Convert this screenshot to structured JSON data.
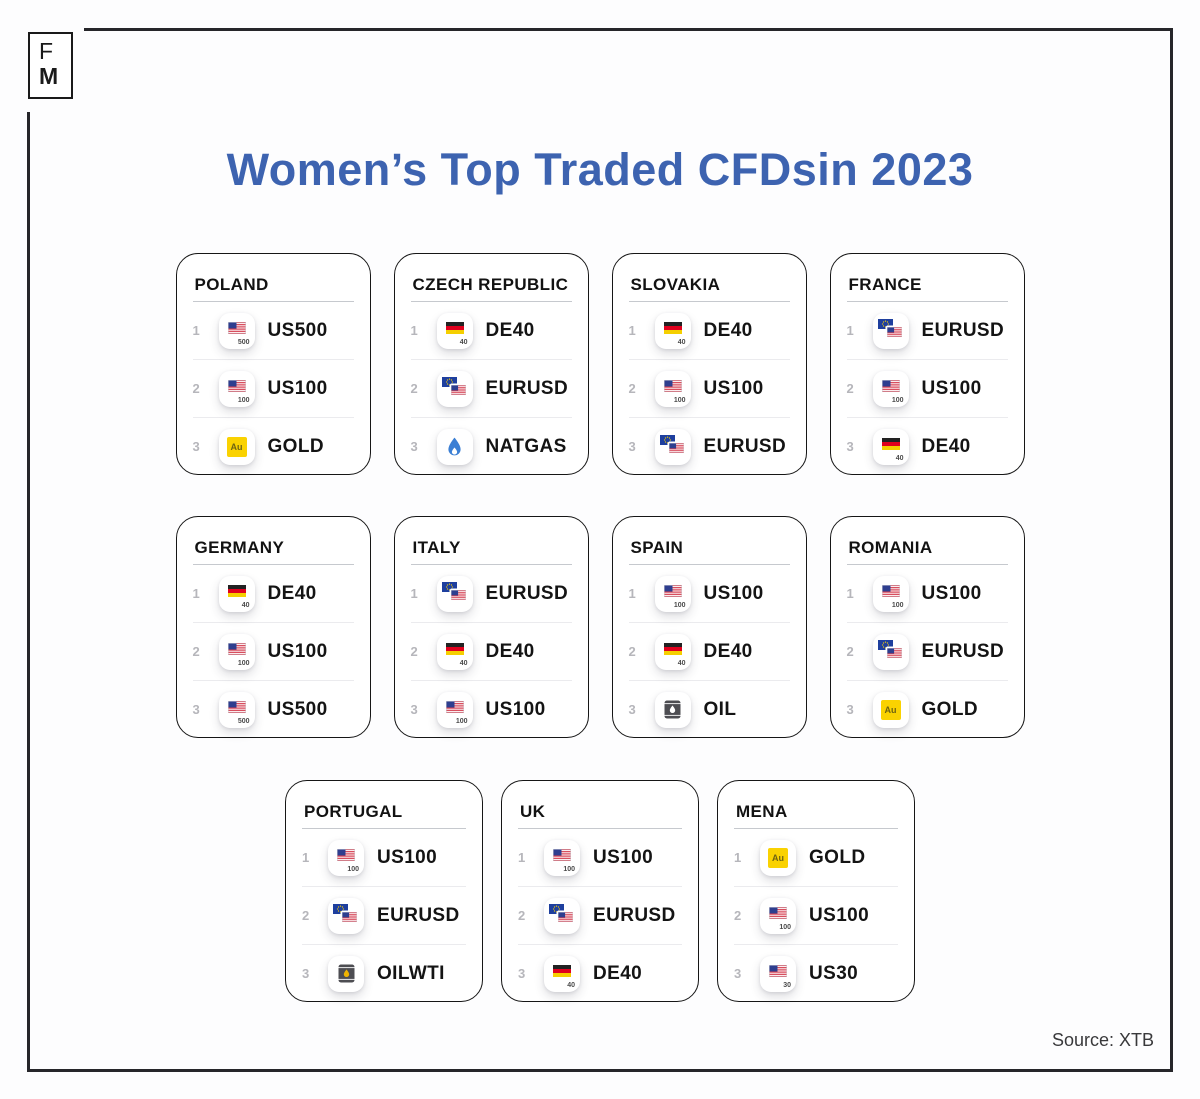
{
  "logo": {
    "top": "F",
    "bottom": "M"
  },
  "title": "Women’s Top Traded CFDsin 2023",
  "source": "Source: XTB",
  "colors": {
    "title_blue": "#3d63b0",
    "card_border": "#161616",
    "rank_gray": "#b6b6bb",
    "gold": "#fad201",
    "flame_blue": "#3b7fd4",
    "us_red": "#d0283c",
    "us_canton": "#2e3e8f",
    "de_black": "#222222",
    "de_red": "#e0001d",
    "de_gold": "#f5cf00",
    "eu_blue": "#1e3f9e",
    "eu_star": "#ffd500",
    "barrel_gray": "#4d4d52",
    "wti_drop": "#f0b400"
  },
  "icon_defs": {
    "us500": {
      "kind": "flag",
      "flag": "us",
      "badge": "500"
    },
    "us100": {
      "kind": "flag",
      "flag": "us",
      "badge": "100"
    },
    "us30": {
      "kind": "flag",
      "flag": "us",
      "badge": "30"
    },
    "de40": {
      "kind": "flag",
      "flag": "de",
      "badge": "40"
    },
    "eurusd": {
      "kind": "pair"
    },
    "gold": {
      "kind": "gold",
      "text": "Au"
    },
    "natgas": {
      "kind": "flame"
    },
    "oil": {
      "kind": "barrel",
      "drop": "#ffffff"
    },
    "oilwti": {
      "kind": "barrel",
      "drop": "#f0b400"
    }
  },
  "cards": [
    {
      "country": "POLAND",
      "row": 0,
      "items": [
        {
          "rank": "1",
          "label": "US500",
          "icon": "us500"
        },
        {
          "rank": "2",
          "label": "US100",
          "icon": "us100"
        },
        {
          "rank": "3",
          "label": "GOLD",
          "icon": "gold"
        }
      ]
    },
    {
      "country": "CZECH REPUBLIC",
      "row": 0,
      "items": [
        {
          "rank": "1",
          "label": "DE40",
          "icon": "de40"
        },
        {
          "rank": "2",
          "label": "EURUSD",
          "icon": "eurusd"
        },
        {
          "rank": "3",
          "label": "NATGAS",
          "icon": "natgas"
        }
      ]
    },
    {
      "country": "SLOVAKIA",
      "row": 0,
      "items": [
        {
          "rank": "1",
          "label": "DE40",
          "icon": "de40"
        },
        {
          "rank": "2",
          "label": "US100",
          "icon": "us100"
        },
        {
          "rank": "3",
          "label": "EURUSD",
          "icon": "eurusd"
        }
      ]
    },
    {
      "country": "FRANCE",
      "row": 0,
      "items": [
        {
          "rank": "1",
          "label": "EURUSD",
          "icon": "eurusd"
        },
        {
          "rank": "2",
          "label": "US100",
          "icon": "us100"
        },
        {
          "rank": "3",
          "label": "DE40",
          "icon": "de40"
        }
      ]
    },
    {
      "country": "GERMANY",
      "row": 1,
      "items": [
        {
          "rank": "1",
          "label": "DE40",
          "icon": "de40"
        },
        {
          "rank": "2",
          "label": "US100",
          "icon": "us100"
        },
        {
          "rank": "3",
          "label": "US500",
          "icon": "us500"
        }
      ]
    },
    {
      "country": "ITALY",
      "row": 1,
      "items": [
        {
          "rank": "1",
          "label": "EURUSD",
          "icon": "eurusd"
        },
        {
          "rank": "2",
          "label": "DE40",
          "icon": "de40"
        },
        {
          "rank": "3",
          "label": "US100",
          "icon": "us100"
        }
      ]
    },
    {
      "country": "SPAIN",
      "row": 1,
      "items": [
        {
          "rank": "1",
          "label": "US100",
          "icon": "us100"
        },
        {
          "rank": "2",
          "label": "DE40",
          "icon": "de40"
        },
        {
          "rank": "3",
          "label": "OIL",
          "icon": "oil"
        }
      ]
    },
    {
      "country": "ROMANIA",
      "row": 1,
      "items": [
        {
          "rank": "1",
          "label": "US100",
          "icon": "us100"
        },
        {
          "rank": "2",
          "label": "EURUSD",
          "icon": "eurusd"
        },
        {
          "rank": "3",
          "label": "GOLD",
          "icon": "gold"
        }
      ]
    },
    {
      "country": "PORTUGAL",
      "row": 2,
      "items": [
        {
          "rank": "1",
          "label": "US100",
          "icon": "us100"
        },
        {
          "rank": "2",
          "label": "EURUSD",
          "icon": "eurusd"
        },
        {
          "rank": "3",
          "label": "OILWTI",
          "icon": "oilwti"
        }
      ]
    },
    {
      "country": "UK",
      "row": 2,
      "items": [
        {
          "rank": "1",
          "label": "US100",
          "icon": "us100"
        },
        {
          "rank": "2",
          "label": "EURUSD",
          "icon": "eurusd"
        },
        {
          "rank": "3",
          "label": "DE40",
          "icon": "de40"
        }
      ]
    },
    {
      "country": "MENA",
      "row": 2,
      "items": [
        {
          "rank": "1",
          "label": "GOLD",
          "icon": "gold"
        },
        {
          "rank": "2",
          "label": "US100",
          "icon": "us100"
        },
        {
          "rank": "3",
          "label": "US30",
          "icon": "us30"
        }
      ]
    }
  ]
}
